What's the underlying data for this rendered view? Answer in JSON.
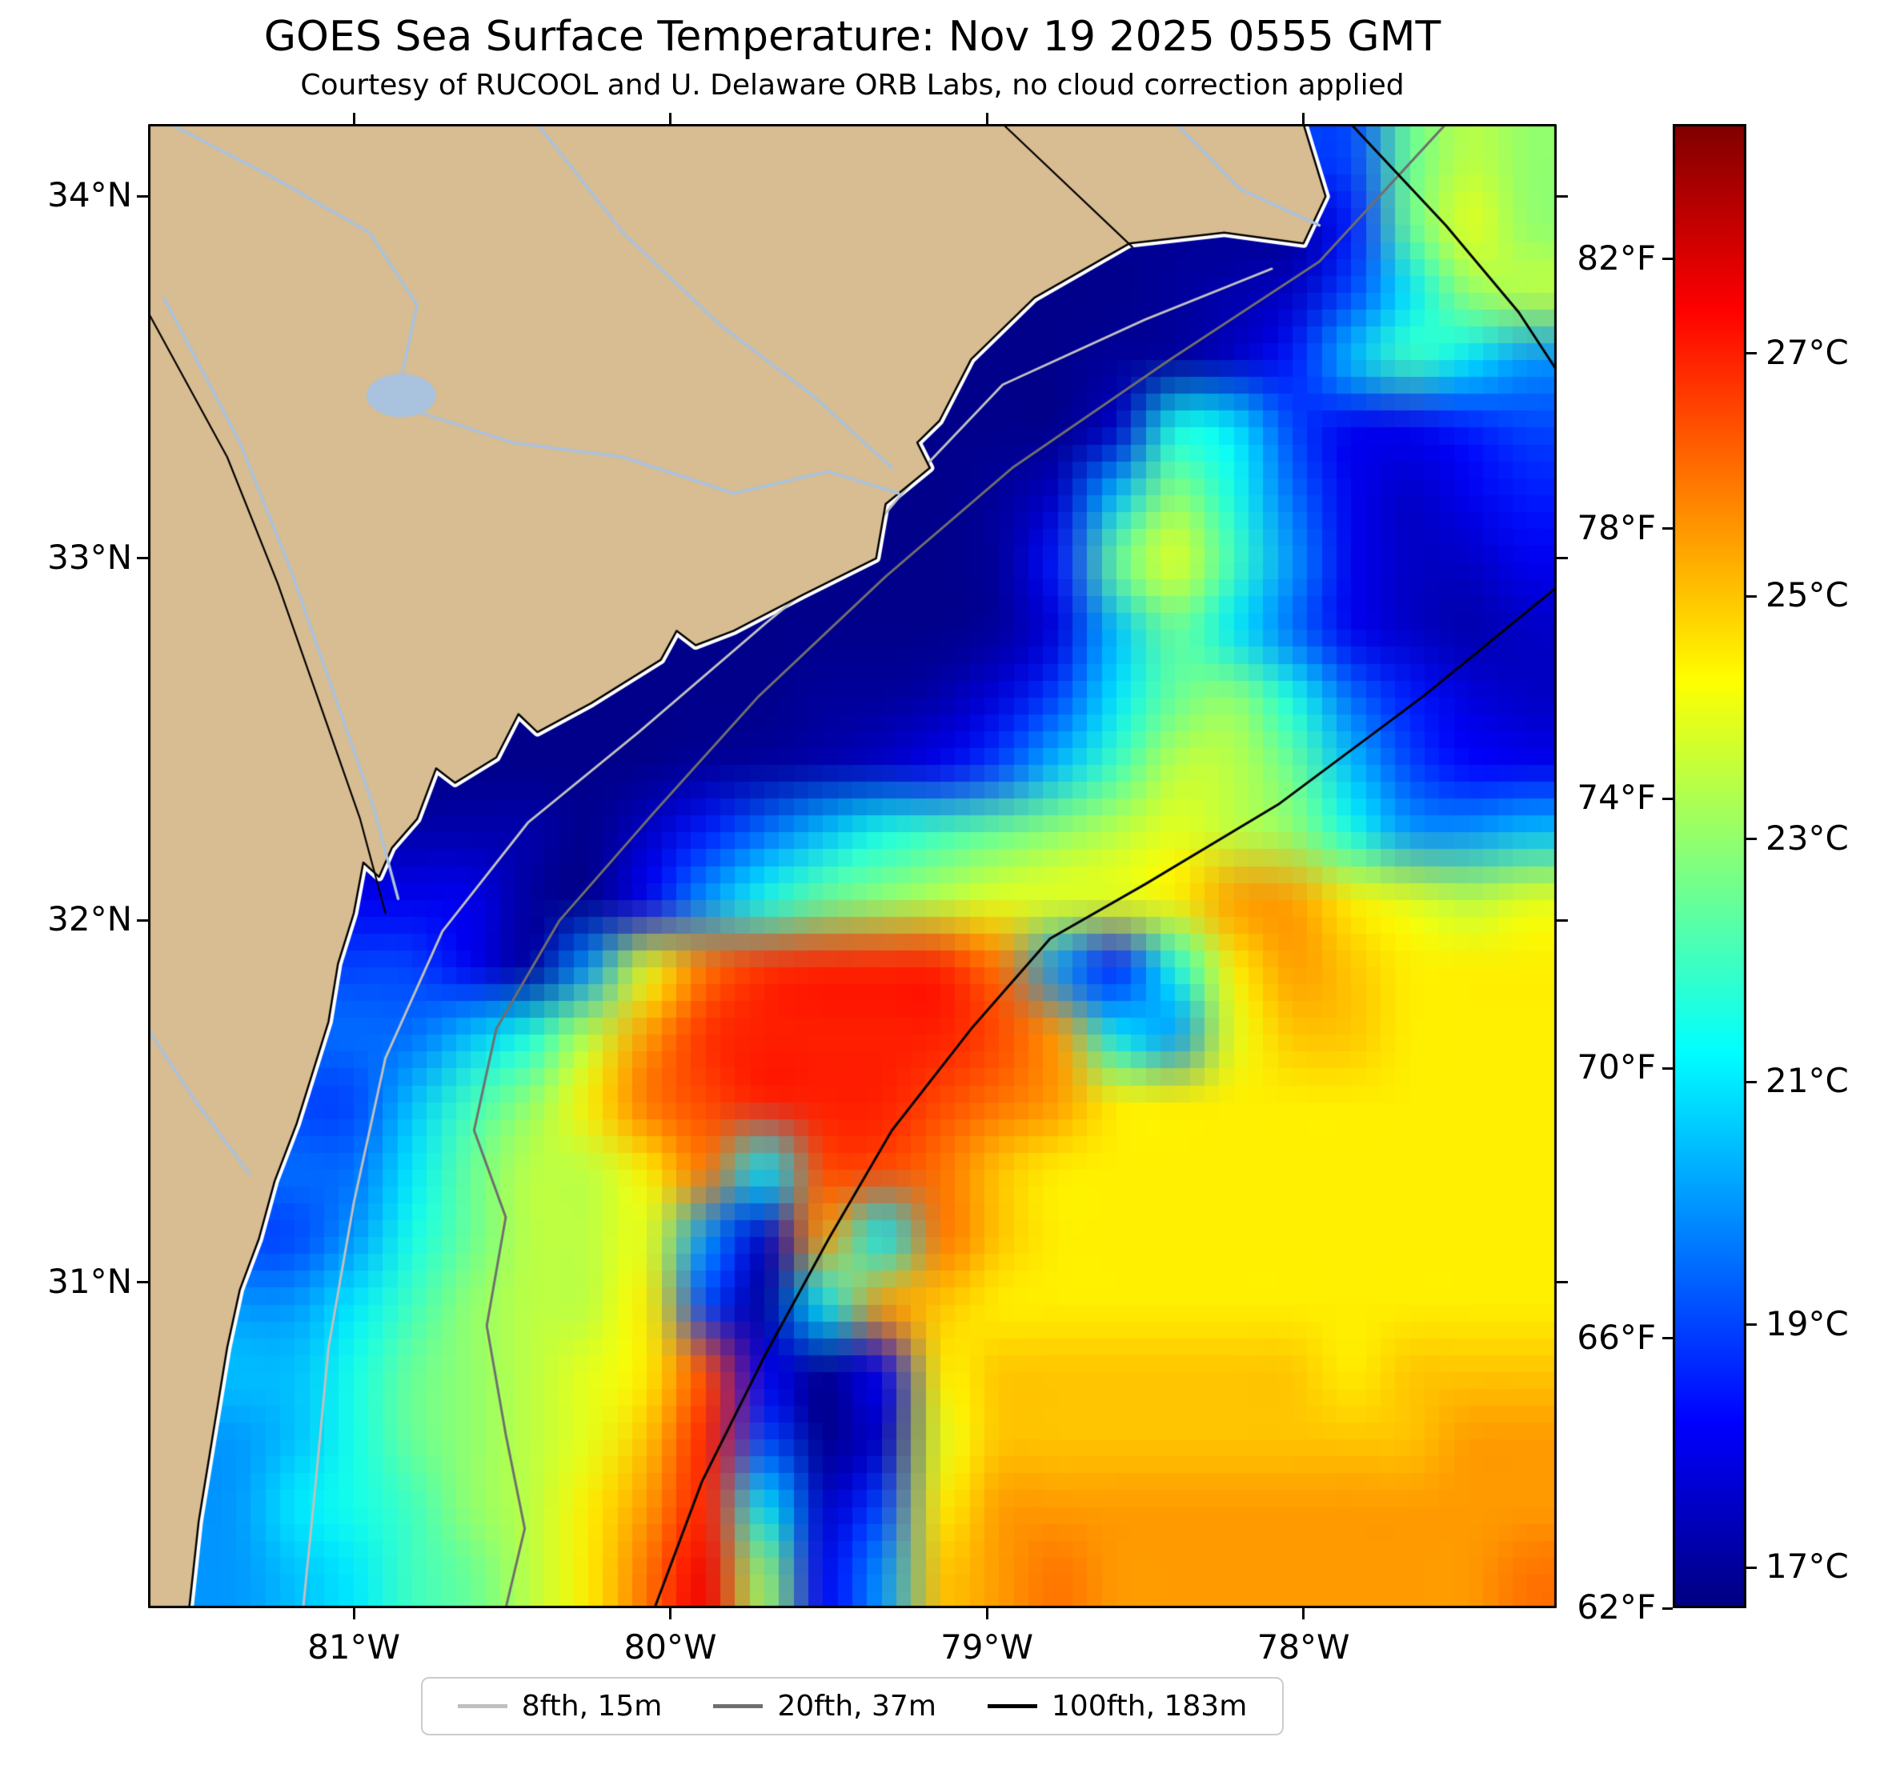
{
  "header": {
    "title": "GOES Sea Surface Temperature: Nov 19 2025 0555 GMT",
    "subtitle": "Courtesy of RUCOOL and U. Delaware ORB Labs, no cloud correction applied"
  },
  "legend": {
    "items": [
      {
        "label": "8fth, 15m",
        "color": "#c0c0c0"
      },
      {
        "label": "20fth, 37m",
        "color": "#6f6f6f"
      },
      {
        "label": "100fth, 183m",
        "color": "#000000"
      }
    ]
  },
  "chart_data": {
    "type": "heatmap",
    "title": "GOES Sea Surface Temperature: Nov 19 2025 0555 GMT",
    "subtitle": "Courtesy of RUCOOL and U. Delaware ORB Labs, no cloud correction applied",
    "colormap": "jet",
    "units": "degC",
    "extent": {
      "lon_min": -81.65,
      "lon_max": -77.2,
      "lat_min": 30.1,
      "lat_max": 34.2
    },
    "x_ticks": [
      {
        "value": -81,
        "label": "81°W"
      },
      {
        "value": -80,
        "label": "80°W"
      },
      {
        "value": -79,
        "label": "79°W"
      },
      {
        "value": -78,
        "label": "78°W"
      }
    ],
    "y_ticks": [
      {
        "value": 34,
        "label": "34°N"
      },
      {
        "value": 33,
        "label": "33°N"
      },
      {
        "value": 32,
        "label": "32°N"
      },
      {
        "value": 31,
        "label": "31°N"
      }
    ],
    "colorbar": {
      "vmin_f": 62,
      "vmax_f": 84,
      "f_ticks": [
        {
          "value": 82,
          "label": "82°F"
        },
        {
          "value": 78,
          "label": "78°F"
        },
        {
          "value": 74,
          "label": "74°F"
        },
        {
          "value": 70,
          "label": "70°F"
        },
        {
          "value": 66,
          "label": "66°F"
        },
        {
          "value": 62,
          "label": "62°F"
        }
      ],
      "c_ticks": [
        {
          "value": 27,
          "label": "27°C"
        },
        {
          "value": 25,
          "label": "25°C"
        },
        {
          "value": 23,
          "label": "23°C"
        },
        {
          "value": 21,
          "label": "21°C"
        },
        {
          "value": 19,
          "label": "19°C"
        },
        {
          "value": 17,
          "label": "17°C"
        }
      ]
    },
    "land_color": "#d8bc92",
    "river_color": "#a9c2de",
    "sst_grid": {
      "cols": 24,
      "rows": 22,
      "units": "C",
      "values": [
        [
          null,
          null,
          null,
          null,
          null,
          null,
          null,
          null,
          null,
          null,
          null,
          null,
          null,
          null,
          null,
          null,
          null,
          null,
          null,
          null,
          19,
          22.5,
          23.5,
          23
        ],
        [
          null,
          null,
          null,
          null,
          null,
          null,
          null,
          null,
          null,
          null,
          null,
          null,
          null,
          null,
          null,
          null,
          null,
          null,
          17,
          17,
          18.5,
          22.5,
          24,
          23
        ],
        [
          null,
          null,
          null,
          null,
          null,
          null,
          null,
          null,
          null,
          null,
          null,
          null,
          null,
          null,
          null,
          null,
          16.8,
          17,
          17.2,
          17.5,
          19,
          21,
          23,
          23.5
        ],
        [
          null,
          null,
          null,
          null,
          null,
          null,
          null,
          null,
          null,
          null,
          null,
          null,
          null,
          null,
          16.8,
          16.8,
          17,
          17,
          17.5,
          18.5,
          20.5,
          22,
          21,
          20
        ],
        [
          null,
          null,
          null,
          null,
          null,
          null,
          null,
          null,
          null,
          null,
          null,
          null,
          null,
          16.8,
          16.8,
          16.8,
          17.5,
          21.5,
          21,
          19,
          18,
          18,
          18.5,
          19
        ],
        [
          null,
          null,
          null,
          null,
          null,
          null,
          null,
          null,
          null,
          null,
          null,
          null,
          null,
          16.8,
          17,
          17.5,
          20.5,
          23,
          21.5,
          19.5,
          18,
          17.5,
          18,
          18.5
        ],
        [
          null,
          null,
          null,
          null,
          null,
          null,
          null,
          null,
          null,
          null,
          null,
          null,
          16.8,
          16.8,
          17,
          18.5,
          22.5,
          24,
          22,
          20,
          18,
          17.5,
          17.5,
          18
        ],
        [
          null,
          null,
          null,
          null,
          null,
          null,
          null,
          null,
          null,
          null,
          null,
          16.8,
          16.8,
          16.8,
          17,
          17.8,
          20.5,
          22.5,
          21,
          19.5,
          18,
          17.5,
          17.2,
          17.5
        ],
        [
          null,
          null,
          null,
          null,
          null,
          null,
          null,
          null,
          16.8,
          16.8,
          16.8,
          17,
          17,
          17.2,
          17.8,
          19,
          21,
          22.5,
          23,
          21.5,
          19.5,
          18.5,
          17.8,
          17.5
        ],
        [
          null,
          null,
          null,
          null,
          null,
          null,
          null,
          16.8,
          16.8,
          17,
          17,
          17.2,
          17.5,
          18,
          19,
          20.5,
          22,
          23.5,
          23.5,
          22.5,
          20.5,
          19,
          18.2,
          18
        ],
        [
          null,
          null,
          null,
          null,
          null,
          null,
          17.2,
          16.8,
          17.5,
          18.5,
          19.5,
          20.5,
          21.5,
          22,
          22.5,
          23,
          23.5,
          24,
          23.5,
          23,
          21.5,
          20,
          20,
          20.5
        ],
        [
          null,
          null,
          null,
          null,
          null,
          18,
          17,
          16.8,
          18,
          20,
          21.5,
          22.5,
          23,
          23.5,
          24,
          24,
          24,
          24.5,
          25.5,
          25.5,
          24.5,
          24,
          23.5,
          24
        ],
        [
          null,
          null,
          null,
          null,
          19,
          18,
          17,
          20,
          24,
          26,
          26.8,
          27,
          27,
          27,
          26,
          20,
          18.5,
          21.5,
          24.5,
          25.5,
          25,
          24.5,
          24.5,
          24.5
        ],
        [
          null,
          null,
          null,
          null,
          19.5,
          20.5,
          21.5,
          23.5,
          25.5,
          26.8,
          27,
          27,
          27,
          27,
          26.5,
          25.5,
          21,
          20,
          24,
          25,
          25,
          24.5,
          24.5,
          24.5
        ],
        [
          null,
          null,
          null,
          19,
          20.5,
          22,
          23,
          24.5,
          26,
          26.5,
          27,
          27,
          27,
          26.5,
          26,
          25.5,
          24.5,
          24.5,
          24.5,
          24.5,
          24.5,
          24.5,
          24.5,
          24.5
        ],
        [
          null,
          null,
          null,
          19.5,
          21,
          22.5,
          23.5,
          23.5,
          24.5,
          26,
          21,
          26.5,
          26.5,
          26,
          25,
          24.5,
          24.5,
          24.5,
          24.5,
          24.5,
          24.5,
          24.5,
          24.5,
          24.5
        ],
        [
          null,
          null,
          19,
          20,
          21.5,
          22.5,
          23.5,
          23.5,
          24,
          20,
          17.5,
          25.5,
          21,
          26,
          25,
          24.5,
          24.5,
          24.5,
          24.5,
          24.5,
          24.5,
          24.5,
          24.5,
          24.5
        ],
        [
          null,
          null,
          20,
          21,
          22,
          23,
          23.5,
          23.5,
          24.5,
          19,
          17,
          21,
          25.5,
          25,
          24.5,
          24.5,
          24.5,
          24.5,
          24.5,
          24.5,
          24.5,
          24.5,
          24.5,
          24.5
        ],
        [
          null,
          null,
          20.5,
          21.5,
          22.5,
          23,
          23.5,
          24,
          24.5,
          26.5,
          18,
          16.8,
          18,
          24.5,
          25,
          25,
          25,
          25,
          25,
          25,
          24.5,
          25,
          25,
          25
        ],
        [
          null,
          20,
          20.5,
          21.5,
          22.5,
          23,
          23.5,
          24,
          25,
          27,
          19,
          16.8,
          17.5,
          24,
          25,
          25,
          25,
          25,
          25,
          25,
          25,
          25,
          25.5,
          25.5
        ],
        [
          null,
          20,
          21,
          21.5,
          22,
          23,
          23.5,
          24.5,
          25.5,
          27,
          21,
          17.5,
          19,
          24.5,
          25.5,
          25.5,
          25.5,
          25.5,
          25.5,
          25.5,
          25.5,
          25.5,
          25.5,
          25.5
        ],
        [
          null,
          20,
          20.5,
          21,
          22,
          22.5,
          23.5,
          24.5,
          26,
          27.5,
          23,
          18,
          20,
          25,
          25.5,
          26,
          25.5,
          25.5,
          25.5,
          25.5,
          25.5,
          25.5,
          25.5,
          26
        ]
      ]
    },
    "coastline": [
      [
        -78.0,
        34.2
      ],
      [
        -77.93,
        34.0
      ],
      [
        -78.0,
        33.87
      ],
      [
        -78.25,
        33.9
      ],
      [
        -78.55,
        33.87
      ],
      [
        -78.85,
        33.72
      ],
      [
        -79.05,
        33.55
      ],
      [
        -79.15,
        33.38
      ],
      [
        -79.22,
        33.32
      ],
      [
        -79.18,
        33.25
      ],
      [
        -79.32,
        33.15
      ],
      [
        -79.35,
        33.0
      ],
      [
        -79.58,
        32.9
      ],
      [
        -79.8,
        32.8
      ],
      [
        -79.92,
        32.76
      ],
      [
        -79.98,
        32.8
      ],
      [
        -80.03,
        32.72
      ],
      [
        -80.25,
        32.6
      ],
      [
        -80.42,
        32.52
      ],
      [
        -80.48,
        32.57
      ],
      [
        -80.55,
        32.45
      ],
      [
        -80.68,
        32.38
      ],
      [
        -80.74,
        32.42
      ],
      [
        -80.8,
        32.28
      ],
      [
        -80.88,
        32.2
      ],
      [
        -80.92,
        32.12
      ],
      [
        -80.97,
        32.16
      ],
      [
        -81.0,
        32.02
      ],
      [
        -81.05,
        31.88
      ],
      [
        -81.08,
        31.72
      ],
      [
        -81.13,
        31.58
      ],
      [
        -81.18,
        31.44
      ],
      [
        -81.25,
        31.28
      ],
      [
        -81.3,
        31.12
      ],
      [
        -81.36,
        30.98
      ],
      [
        -81.4,
        30.82
      ],
      [
        -81.43,
        30.66
      ],
      [
        -81.46,
        30.5
      ],
      [
        -81.49,
        30.34
      ],
      [
        -81.52,
        30.1
      ]
    ],
    "land_close": [
      [
        -81.65,
        30.1
      ],
      [
        -81.65,
        34.2
      ]
    ],
    "rivers": [
      {
        "name": "congaree",
        "points": [
          [
            -81.58,
            34.2
          ],
          [
            -81.25,
            34.05
          ],
          [
            -80.95,
            33.9
          ],
          [
            -80.8,
            33.7
          ],
          [
            -80.85,
            33.5
          ]
        ]
      },
      {
        "name": "santee",
        "points": [
          [
            -80.85,
            33.42
          ],
          [
            -80.5,
            33.32
          ],
          [
            -80.15,
            33.28
          ],
          [
            -79.8,
            33.18
          ],
          [
            -79.5,
            33.24
          ],
          [
            -79.28,
            33.18
          ]
        ]
      },
      {
        "name": "pee-dee",
        "points": [
          [
            -80.42,
            34.2
          ],
          [
            -80.15,
            33.9
          ],
          [
            -79.85,
            33.65
          ],
          [
            -79.55,
            33.45
          ],
          [
            -79.3,
            33.25
          ]
        ]
      },
      {
        "name": "savannah",
        "points": [
          [
            -81.6,
            33.72
          ],
          [
            -81.36,
            33.32
          ],
          [
            -81.2,
            32.97
          ],
          [
            -81.06,
            32.62
          ],
          [
            -80.94,
            32.32
          ],
          [
            -80.86,
            32.06
          ]
        ]
      },
      {
        "name": "altamaha",
        "points": [
          [
            -81.65,
            31.7
          ],
          [
            -81.5,
            31.5
          ],
          [
            -81.33,
            31.3
          ]
        ]
      },
      {
        "name": "cape-fear",
        "points": [
          [
            -78.4,
            34.2
          ],
          [
            -78.2,
            34.02
          ],
          [
            -77.95,
            33.92
          ]
        ]
      }
    ],
    "lakes": [
      {
        "name": "lake-marion",
        "center": [
          -80.85,
          33.45
        ],
        "rx": 0.11,
        "ry": 0.06
      }
    ],
    "borders": [
      {
        "name": "nc-sc-border",
        "points": [
          [
            -78.95,
            34.2
          ],
          [
            -78.54,
            33.86
          ]
        ]
      },
      {
        "name": "sc-ga-border",
        "points": [
          [
            -81.65,
            33.68
          ],
          [
            -81.4,
            33.28
          ],
          [
            -81.24,
            32.93
          ],
          [
            -81.1,
            32.58
          ],
          [
            -80.98,
            32.28
          ],
          [
            -80.9,
            32.02
          ]
        ]
      }
    ],
    "contours": [
      {
        "name": "8fth",
        "label": "8fth, 15m",
        "color": "#c0c0c0",
        "width": 3,
        "segments": [
          [
            [
              -78.1,
              33.8
            ],
            [
              -78.5,
              33.66
            ],
            [
              -78.95,
              33.48
            ],
            [
              -79.2,
              33.25
            ],
            [
              -79.42,
              33.02
            ],
            [
              -79.7,
              32.82
            ],
            [
              -80.1,
              32.52
            ],
            [
              -80.45,
              32.27
            ],
            [
              -80.72,
              31.97
            ],
            [
              -80.9,
              31.62
            ],
            [
              -81.0,
              31.22
            ],
            [
              -81.08,
              30.82
            ],
            [
              -81.12,
              30.45
            ],
            [
              -81.16,
              30.1
            ]
          ]
        ]
      },
      {
        "name": "20fth",
        "label": "20fth, 37m",
        "color": "#6f6f6f",
        "width": 3,
        "segments": [
          [
            [
              -77.55,
              34.2
            ],
            [
              -77.95,
              33.82
            ],
            [
              -78.42,
              33.55
            ],
            [
              -78.92,
              33.25
            ],
            [
              -79.32,
              32.95
            ],
            [
              -79.72,
              32.62
            ],
            [
              -80.05,
              32.3
            ],
            [
              -80.35,
              32.0
            ],
            [
              -80.55,
              31.7
            ],
            [
              -80.62,
              31.42
            ],
            [
              -80.52,
              31.18
            ],
            [
              -80.58,
              30.88
            ],
            [
              -80.52,
              30.58
            ],
            [
              -80.46,
              30.32
            ],
            [
              -80.52,
              30.1
            ]
          ]
        ]
      },
      {
        "name": "100fth",
        "label": "100fth, 183m",
        "color": "#000000",
        "width": 3,
        "segments": [
          [
            [
              -77.85,
              34.2
            ],
            [
              -77.55,
              33.92
            ],
            [
              -77.32,
              33.68
            ],
            [
              -77.2,
              33.52
            ]
          ],
          [
            [
              -77.2,
              32.92
            ],
            [
              -77.62,
              32.62
            ],
            [
              -78.08,
              32.32
            ],
            [
              -78.5,
              32.1
            ],
            [
              -78.8,
              31.95
            ],
            [
              -79.05,
              31.7
            ],
            [
              -79.3,
              31.42
            ],
            [
              -79.5,
              31.12
            ],
            [
              -79.7,
              30.8
            ],
            [
              -79.9,
              30.45
            ],
            [
              -80.05,
              30.1
            ]
          ]
        ]
      }
    ]
  }
}
